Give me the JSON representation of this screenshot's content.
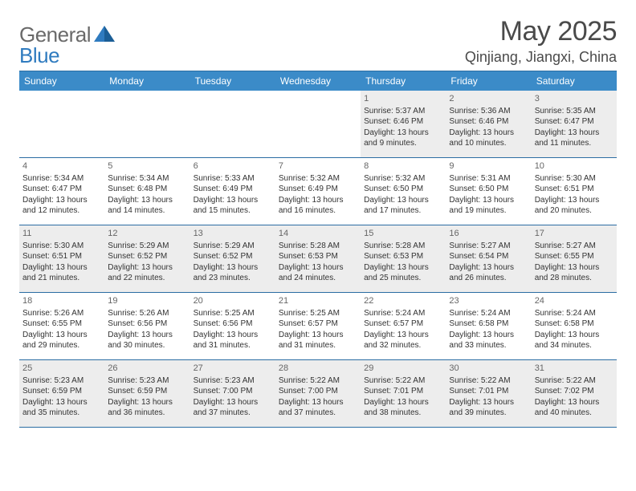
{
  "brand": {
    "text1": "General",
    "text2": "Blue"
  },
  "title": "May 2025",
  "location": "Qinjiang, Jiangxi, China",
  "colors": {
    "header_bg": "#3b8bc8",
    "border": "#2b6da3",
    "shade": "#ededed",
    "text": "#333333",
    "logo_gray": "#6a6a6a",
    "logo_blue": "#2f7bbf"
  },
  "dow": [
    "Sunday",
    "Monday",
    "Tuesday",
    "Wednesday",
    "Thursday",
    "Friday",
    "Saturday"
  ],
  "weeks": [
    [
      null,
      null,
      null,
      null,
      {
        "n": "1",
        "sr": "5:37 AM",
        "ss": "6:46 PM",
        "dl": "13 hours and 9 minutes."
      },
      {
        "n": "2",
        "sr": "5:36 AM",
        "ss": "6:46 PM",
        "dl": "13 hours and 10 minutes."
      },
      {
        "n": "3",
        "sr": "5:35 AM",
        "ss": "6:47 PM",
        "dl": "13 hours and 11 minutes."
      }
    ],
    [
      {
        "n": "4",
        "sr": "5:34 AM",
        "ss": "6:47 PM",
        "dl": "13 hours and 12 minutes."
      },
      {
        "n": "5",
        "sr": "5:34 AM",
        "ss": "6:48 PM",
        "dl": "13 hours and 14 minutes."
      },
      {
        "n": "6",
        "sr": "5:33 AM",
        "ss": "6:49 PM",
        "dl": "13 hours and 15 minutes."
      },
      {
        "n": "7",
        "sr": "5:32 AM",
        "ss": "6:49 PM",
        "dl": "13 hours and 16 minutes."
      },
      {
        "n": "8",
        "sr": "5:32 AM",
        "ss": "6:50 PM",
        "dl": "13 hours and 17 minutes."
      },
      {
        "n": "9",
        "sr": "5:31 AM",
        "ss": "6:50 PM",
        "dl": "13 hours and 19 minutes."
      },
      {
        "n": "10",
        "sr": "5:30 AM",
        "ss": "6:51 PM",
        "dl": "13 hours and 20 minutes."
      }
    ],
    [
      {
        "n": "11",
        "sr": "5:30 AM",
        "ss": "6:51 PM",
        "dl": "13 hours and 21 minutes."
      },
      {
        "n": "12",
        "sr": "5:29 AM",
        "ss": "6:52 PM",
        "dl": "13 hours and 22 minutes."
      },
      {
        "n": "13",
        "sr": "5:29 AM",
        "ss": "6:52 PM",
        "dl": "13 hours and 23 minutes."
      },
      {
        "n": "14",
        "sr": "5:28 AM",
        "ss": "6:53 PM",
        "dl": "13 hours and 24 minutes."
      },
      {
        "n": "15",
        "sr": "5:28 AM",
        "ss": "6:53 PM",
        "dl": "13 hours and 25 minutes."
      },
      {
        "n": "16",
        "sr": "5:27 AM",
        "ss": "6:54 PM",
        "dl": "13 hours and 26 minutes."
      },
      {
        "n": "17",
        "sr": "5:27 AM",
        "ss": "6:55 PM",
        "dl": "13 hours and 28 minutes."
      }
    ],
    [
      {
        "n": "18",
        "sr": "5:26 AM",
        "ss": "6:55 PM",
        "dl": "13 hours and 29 minutes."
      },
      {
        "n": "19",
        "sr": "5:26 AM",
        "ss": "6:56 PM",
        "dl": "13 hours and 30 minutes."
      },
      {
        "n": "20",
        "sr": "5:25 AM",
        "ss": "6:56 PM",
        "dl": "13 hours and 31 minutes."
      },
      {
        "n": "21",
        "sr": "5:25 AM",
        "ss": "6:57 PM",
        "dl": "13 hours and 31 minutes."
      },
      {
        "n": "22",
        "sr": "5:24 AM",
        "ss": "6:57 PM",
        "dl": "13 hours and 32 minutes."
      },
      {
        "n": "23",
        "sr": "5:24 AM",
        "ss": "6:58 PM",
        "dl": "13 hours and 33 minutes."
      },
      {
        "n": "24",
        "sr": "5:24 AM",
        "ss": "6:58 PM",
        "dl": "13 hours and 34 minutes."
      }
    ],
    [
      {
        "n": "25",
        "sr": "5:23 AM",
        "ss": "6:59 PM",
        "dl": "13 hours and 35 minutes."
      },
      {
        "n": "26",
        "sr": "5:23 AM",
        "ss": "6:59 PM",
        "dl": "13 hours and 36 minutes."
      },
      {
        "n": "27",
        "sr": "5:23 AM",
        "ss": "7:00 PM",
        "dl": "13 hours and 37 minutes."
      },
      {
        "n": "28",
        "sr": "5:22 AM",
        "ss": "7:00 PM",
        "dl": "13 hours and 37 minutes."
      },
      {
        "n": "29",
        "sr": "5:22 AM",
        "ss": "7:01 PM",
        "dl": "13 hours and 38 minutes."
      },
      {
        "n": "30",
        "sr": "5:22 AM",
        "ss": "7:01 PM",
        "dl": "13 hours and 39 minutes."
      },
      {
        "n": "31",
        "sr": "5:22 AM",
        "ss": "7:02 PM",
        "dl": "13 hours and 40 minutes."
      }
    ]
  ],
  "labels": {
    "sunrise": "Sunrise:",
    "sunset": "Sunset:",
    "daylight": "Daylight:"
  }
}
